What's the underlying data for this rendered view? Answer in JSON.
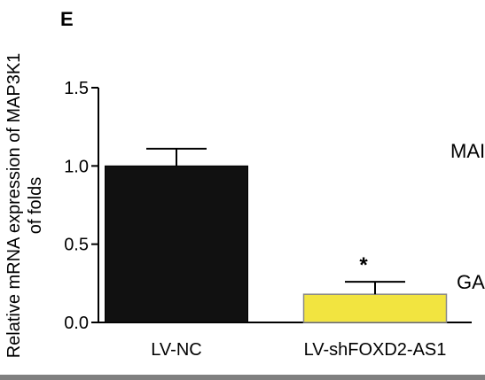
{
  "panel": {
    "letter": "E"
  },
  "side_labels": {
    "top": "MAI",
    "bottom": "GA"
  },
  "chart_data": {
    "type": "bar",
    "categories": [
      "LV-NC",
      "LV-shFOXD2-AS1"
    ],
    "values": [
      1.0,
      0.18
    ],
    "errors": [
      0.11,
      0.08
    ],
    "annotations": [
      "",
      "*"
    ],
    "bar_colors": [
      "#111111",
      "#f2e440"
    ],
    "title": "",
    "xlabel": "",
    "ylabel_lines": [
      "Relative mRNA expression of MAP3K1",
      "of folds"
    ],
    "ylim": [
      0,
      1.5
    ],
    "yticks": [
      0.0,
      0.5,
      1.0,
      1.5
    ],
    "ytick_labels": [
      "0.0",
      "0.5",
      "1.0",
      "1.5"
    ],
    "grid": false,
    "legend": "none"
  }
}
